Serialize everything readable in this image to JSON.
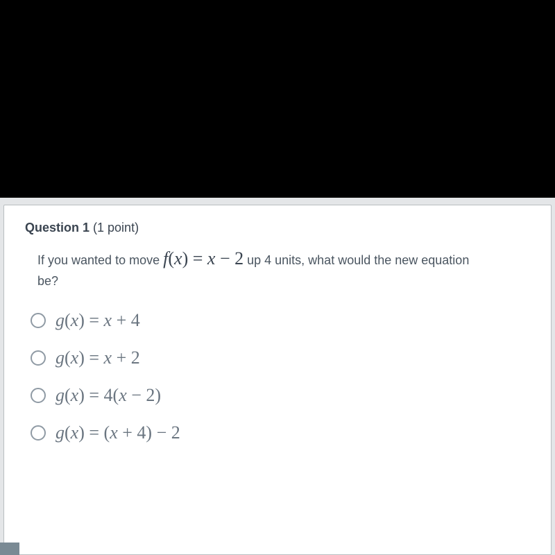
{
  "question": {
    "header_bold": "Question 1",
    "header_points": "(1 point)",
    "prompt_before": "If you wanted to move ",
    "prompt_math": "f(x) = x − 2",
    "prompt_after_1": " up 4 units, what would the new equation",
    "prompt_after_2": "be?"
  },
  "options": [
    {
      "expr": "g(x) = x + 4"
    },
    {
      "expr": "g(x) = x + 2"
    },
    {
      "expr": "g(x) = 4(x − 2)"
    },
    {
      "expr": "g(x) = (x + 4) − 2"
    }
  ],
  "style": {
    "bg_outer": "#000000",
    "bg_content": "#e4e6e8",
    "panel_bg": "#ffffff",
    "panel_border": "#b8bdc0",
    "text_header": "#3a4450",
    "text_prompt": "#4a5560",
    "text_option": "#6a7580",
    "radio_border": "#8f9aa4",
    "math_fontsize": 26,
    "body_fontsize": 18,
    "option_gap": 24
  }
}
